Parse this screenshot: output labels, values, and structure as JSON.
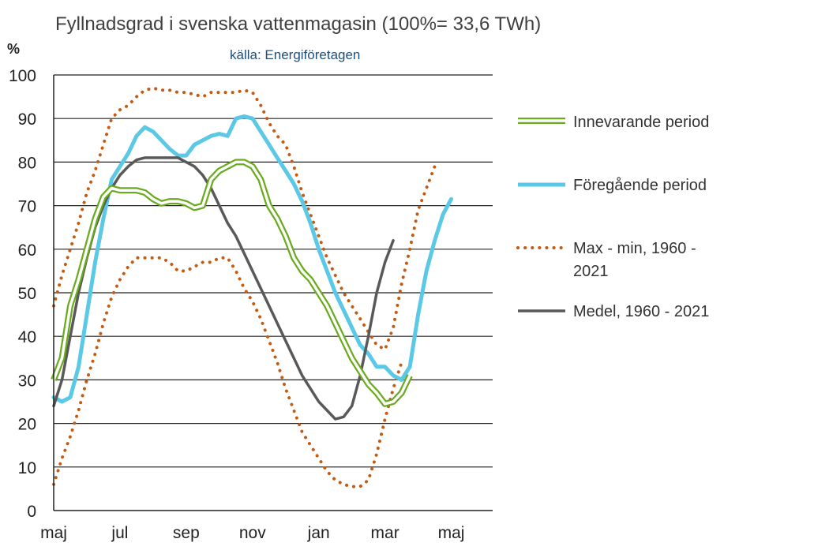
{
  "chart_data": {
    "type": "line",
    "title": "Fyllnadsgrad i svenska vattenmagasin (100%= 33,6 TWh)",
    "subtitle": "källa: Energiföretagen",
    "ylabel": "%",
    "ylim": [
      0,
      100
    ],
    "yticks": [
      0,
      10,
      20,
      30,
      40,
      50,
      60,
      70,
      80,
      90,
      100
    ],
    "xlim": [
      18,
      71
    ],
    "xticks": [
      {
        "week": 18,
        "label": "maj"
      },
      {
        "week": 26,
        "label": "jul"
      },
      {
        "week": 34,
        "label": "sep"
      },
      {
        "week": 42,
        "label": "nov"
      },
      {
        "week": 50,
        "label": "jan"
      },
      {
        "week": 58,
        "label": "mar"
      },
      {
        "week": 66,
        "label": "maj"
      }
    ],
    "grid": "horizontal",
    "legend_position": "right",
    "series": [
      {
        "name": "Innevarande period",
        "style": "double-line",
        "color": "#6aaa1e",
        "x": [
          18,
          19,
          20,
          21,
          22,
          23,
          24,
          25,
          26,
          27,
          28,
          29,
          30,
          31,
          32,
          33,
          34,
          35,
          36,
          37,
          38,
          39,
          40,
          41,
          42,
          43,
          44,
          45,
          46,
          47,
          48,
          49,
          50,
          51,
          52,
          53,
          54,
          55,
          56,
          57,
          58,
          59,
          60,
          61,
          62,
          63,
          64,
          65,
          66
        ],
        "y": [
          30,
          35,
          47,
          53,
          60,
          67,
          72,
          74,
          73.5,
          73.5,
          73.5,
          73,
          71.5,
          70.5,
          71,
          71,
          70.5,
          69.5,
          70,
          76,
          78,
          79,
          80,
          80,
          79,
          76,
          70,
          67,
          63,
          58,
          55,
          53,
          50,
          47,
          43,
          39,
          35,
          32,
          29,
          27,
          24.5,
          25,
          27,
          31,
          null,
          null,
          null,
          null,
          null
        ]
      },
      {
        "name": "Föregående period",
        "color": "#5bc8e6",
        "x": [
          18,
          19,
          20,
          21,
          22,
          23,
          24,
          25,
          26,
          27,
          28,
          29,
          30,
          31,
          32,
          33,
          34,
          35,
          36,
          37,
          38,
          39,
          40,
          41,
          42,
          43,
          44,
          45,
          46,
          47,
          48,
          49,
          50,
          51,
          52,
          53,
          54,
          55,
          56,
          57,
          58,
          59,
          60,
          61,
          62,
          63,
          64,
          65,
          66,
          67,
          68,
          69,
          70,
          71
        ],
        "y": [
          26,
          25,
          26,
          33,
          45,
          57,
          67,
          76,
          79,
          82,
          86,
          88,
          87,
          85,
          83,
          81.5,
          81.5,
          84,
          85,
          86,
          86.5,
          86,
          90,
          90.5,
          90,
          87,
          84,
          81,
          78,
          75,
          71,
          66,
          60,
          55,
          50,
          46,
          42,
          38,
          36,
          33,
          33,
          31,
          30,
          33,
          45,
          55,
          62,
          68,
          71.5,
          null,
          null,
          null,
          null,
          null
        ]
      },
      {
        "name": "Max - min, 1960 - 2021",
        "style": "dotted",
        "color": "#c55a11",
        "x": [
          18,
          19,
          20,
          21,
          22,
          23,
          24,
          25,
          26,
          27,
          28,
          29,
          30,
          31,
          32,
          33,
          34,
          35,
          36,
          37,
          38,
          39,
          40,
          41,
          42,
          43,
          44,
          45,
          46,
          47,
          48,
          49,
          50,
          51,
          52,
          53,
          54,
          55,
          56,
          57,
          58,
          59,
          60,
          61,
          62,
          63,
          64,
          65,
          66,
          67,
          68,
          69,
          70,
          71
        ],
        "max": [
          47,
          54,
          60,
          66,
          73,
          78,
          84,
          90,
          92,
          93,
          95,
          96.5,
          97,
          96.5,
          96.5,
          96,
          96,
          95.5,
          95,
          96,
          96,
          96,
          96,
          96.5,
          96,
          93,
          89,
          86,
          84,
          79,
          73,
          68,
          63,
          58,
          54,
          50,
          47,
          44,
          41,
          38,
          37,
          42,
          52,
          60,
          69,
          74,
          79,
          null,
          null,
          null,
          null,
          null,
          null,
          null
        ],
        "min": [
          6,
          12,
          17,
          23,
          30,
          36,
          43,
          49,
          53,
          56,
          58,
          58,
          58,
          58,
          57,
          55,
          55,
          56,
          57,
          57,
          58,
          58,
          55,
          51,
          48,
          44,
          39,
          34,
          28,
          23,
          18,
          15,
          12,
          9,
          7,
          6,
          5.5,
          5.5,
          7,
          13,
          21,
          28,
          34,
          null,
          null,
          null,
          null,
          null,
          null,
          null,
          null,
          null,
          null,
          null
        ]
      },
      {
        "name": "Medel, 1960 - 2021",
        "color": "#595959",
        "x": [
          18,
          19,
          20,
          21,
          22,
          23,
          24,
          25,
          26,
          27,
          28,
          29,
          30,
          31,
          32,
          33,
          34,
          35,
          36,
          37,
          38,
          39,
          40,
          41,
          42,
          43,
          44,
          45,
          46,
          47,
          48,
          49,
          50,
          51,
          52,
          53,
          54,
          55,
          56,
          57,
          58,
          59,
          60,
          61,
          62,
          63,
          64,
          65,
          66,
          67,
          68,
          69,
          70,
          71
        ],
        "y": [
          24,
          30,
          40,
          50,
          58,
          65,
          70,
          74,
          77,
          79,
          80.5,
          81,
          81,
          81,
          81,
          81,
          80,
          79,
          77,
          74,
          70,
          66,
          63,
          59,
          55,
          51,
          47,
          43,
          39,
          35,
          31,
          28,
          25,
          23,
          21,
          21.5,
          24,
          31,
          40,
          50,
          57,
          62,
          null,
          null,
          null,
          null,
          null,
          null,
          null,
          null,
          null,
          null,
          null,
          null
        ]
      }
    ]
  }
}
